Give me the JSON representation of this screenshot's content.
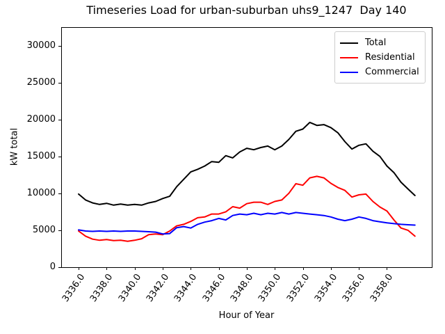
{
  "chart_data": {
    "type": "line",
    "title": "Timeseries Load for urban-suburban uhs9_1247  Day 140",
    "xlabel": "Hour of Year",
    "ylabel": "kW total",
    "xlim": [
      3334.76,
      3361.2
    ],
    "ylim": [
      0,
      32500
    ],
    "grid": false,
    "legend_position": "upper right",
    "xticks": {
      "values": [
        3336,
        3338,
        3340,
        3342,
        3344,
        3346,
        3348,
        3350,
        3352,
        3354,
        3356,
        3358
      ],
      "labels": [
        "3336.0",
        "3338.0",
        "3340.0",
        "3342.0",
        "3344.0",
        "3346.0",
        "3348.0",
        "3350.0",
        "3352.0",
        "3354.0",
        "3356.0",
        "3358.0"
      ]
    },
    "yticks": {
      "values": [
        0,
        5000,
        10000,
        15000,
        20000,
        25000,
        30000
      ],
      "labels": [
        "0",
        "5000",
        "10000",
        "15000",
        "20000",
        "25000",
        "30000"
      ]
    },
    "x": [
      3336.0,
      3336.5,
      3337.0,
      3337.5,
      3338.0,
      3338.5,
      3339.0,
      3339.5,
      3340.0,
      3340.5,
      3341.0,
      3341.5,
      3342.0,
      3342.5,
      3343.0,
      3343.5,
      3344.0,
      3344.5,
      3345.0,
      3345.5,
      3346.0,
      3346.5,
      3347.0,
      3347.5,
      3348.0,
      3348.5,
      3349.0,
      3349.5,
      3350.0,
      3350.5,
      3351.0,
      3351.5,
      3352.0,
      3352.5,
      3353.0,
      3353.5,
      3354.0,
      3354.5,
      3355.0,
      3355.5,
      3356.0,
      3356.5,
      3357.0,
      3357.5,
      3358.0,
      3358.5,
      3359.0,
      3359.5,
      3360.0
    ],
    "series": [
      {
        "name": "Total",
        "color": "#000000",
        "values": [
          9900,
          9100,
          8700,
          8500,
          8650,
          8400,
          8550,
          8400,
          8500,
          8400,
          8700,
          8900,
          9300,
          9600,
          10900,
          11900,
          12900,
          13250,
          13700,
          14300,
          14200,
          15100,
          14800,
          15600,
          16100,
          15900,
          16200,
          16400,
          15900,
          16400,
          17300,
          18400,
          18700,
          19600,
          19200,
          19300,
          18900,
          18200,
          17000,
          16000,
          16500,
          16700,
          15700,
          15000,
          13700,
          12800,
          11500,
          10600,
          9700
        ]
      },
      {
        "name": "Residential",
        "color": "#ff0000",
        "values": [
          4900,
          4200,
          3800,
          3650,
          3750,
          3600,
          3650,
          3500,
          3650,
          3850,
          4400,
          4500,
          4400,
          4900,
          5600,
          5800,
          6200,
          6700,
          6800,
          7200,
          7200,
          7500,
          8200,
          8000,
          8600,
          8800,
          8800,
          8500,
          8900,
          9100,
          10000,
          11300,
          11100,
          12100,
          12300,
          12100,
          11350,
          10800,
          10400,
          9500,
          9800,
          9900,
          8900,
          8150,
          7600,
          6400,
          5300,
          5000,
          4200
        ]
      },
      {
        "name": "Commercial",
        "color": "#0000ff",
        "values": [
          5050,
          4900,
          4850,
          4900,
          4850,
          4900,
          4850,
          4900,
          4900,
          4850,
          4800,
          4750,
          4500,
          4550,
          5350,
          5500,
          5300,
          5800,
          6100,
          6300,
          6600,
          6400,
          7000,
          7200,
          7100,
          7300,
          7100,
          7300,
          7200,
          7400,
          7200,
          7400,
          7300,
          7200,
          7100,
          7000,
          6800,
          6500,
          6300,
          6500,
          6800,
          6600,
          6300,
          6150,
          6000,
          5900,
          5800,
          5750,
          5700
        ]
      }
    ]
  }
}
